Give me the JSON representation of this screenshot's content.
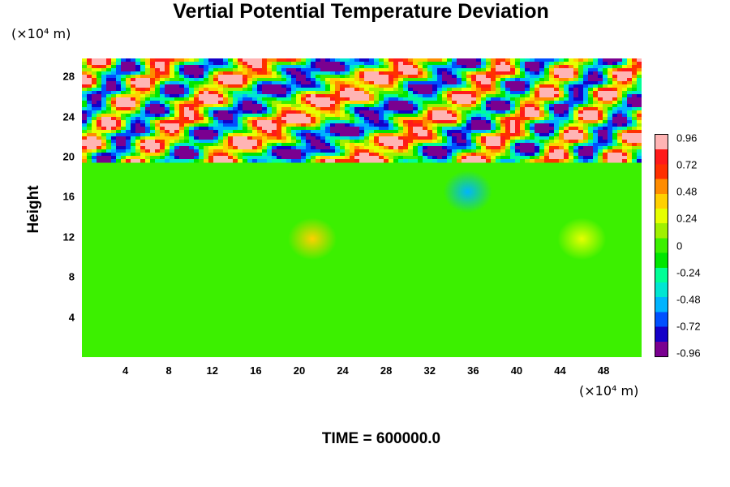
{
  "chart_data": {
    "type": "heatmap",
    "title": "Vertial Potential Temperature Deviation",
    "ylabel": "Height",
    "y_unit": "(×10⁴ m)",
    "x_unit": "(×10⁴ m)",
    "footer": "TIME = 600000.0",
    "xlim": [
      0,
      51.5
    ],
    "ylim": [
      0,
      29.8
    ],
    "x_ticks": [
      "4",
      "8",
      "12",
      "16",
      "20",
      "24",
      "28",
      "32",
      "36",
      "40",
      "44",
      "48"
    ],
    "y_ticks": [
      "4",
      "8",
      "12",
      "16",
      "20",
      "24",
      "28"
    ],
    "colorbar": {
      "min": -0.96,
      "max": 0.96,
      "tick_labels": [
        "0.96",
        "0.72",
        "0.48",
        "0.24",
        "0",
        "-0.24",
        "-0.48",
        "-0.72",
        "-0.96"
      ],
      "colors": [
        "#7a0090",
        "#1400c8",
        "#0050ff",
        "#00b4ff",
        "#00e6d2",
        "#00ff96",
        "#00e600",
        "#3cf000",
        "#a0f000",
        "#e6ff00",
        "#ffd000",
        "#ff8c00",
        "#ff3000",
        "#ff1a1a",
        "#ffb4b4"
      ]
    },
    "features": {
      "background_value": 0.0,
      "upper_layer_y": [
        19.6,
        29.8
      ],
      "anomalies": [
        {
          "x": 21.2,
          "y": 11.8,
          "value": 0.35
        },
        {
          "x": 46.0,
          "y": 11.8,
          "value": 0.3
        },
        {
          "x": 35.5,
          "y": 16.5,
          "value": -0.5
        }
      ]
    }
  }
}
